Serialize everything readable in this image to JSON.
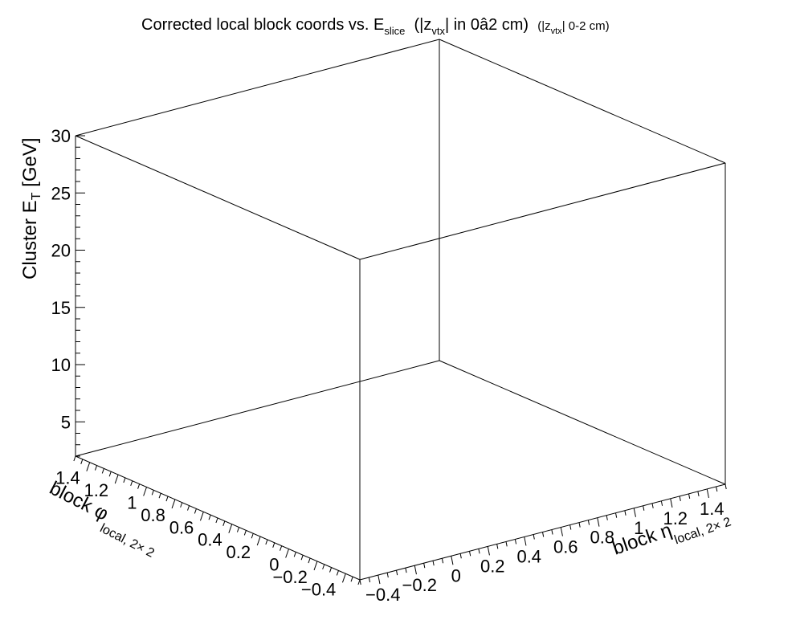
{
  "chart_data": {
    "type": "scatter",
    "title": {
      "main": "Corrected local block coords vs. E",
      "main_sub": "slice",
      "zpart_prefix": "(|z",
      "zpart_sub": "vtx",
      "zpart_suffix": "| in 0â2 cm)",
      "tag_prefix": "(|z",
      "tag_sub": "vtx",
      "tag_suffix": "| 0-2 cm)"
    },
    "zlabel": {
      "text": "Cluster E",
      "sub": "T",
      "suffix": " [GeV]"
    },
    "xlabel": {
      "text": "block η",
      "sub": "local, 2× 2"
    },
    "ylabel": {
      "text": "block φ",
      "sub": "local, 2× 2"
    },
    "x_ticks": [
      "−0.4",
      "−0.2",
      "0",
      "0.2",
      "0.4",
      "0.6",
      "0.8",
      "1",
      "1.2",
      "1.4"
    ],
    "y_ticks": [
      "−0.4",
      "−0.2",
      "0",
      "0.2",
      "0.4",
      "0.6",
      "0.8",
      "1",
      "1.2",
      "1.4"
    ],
    "z_ticks": [
      "5",
      "10",
      "15",
      "20",
      "25",
      "30"
    ],
    "xlim": [
      -0.5,
      1.5
    ],
    "ylim": [
      -0.5,
      1.5
    ],
    "zlim": [
      2,
      30
    ],
    "grid": false,
    "series": [],
    "colors": {
      "axis": "#000000",
      "background": "#ffffff"
    }
  }
}
